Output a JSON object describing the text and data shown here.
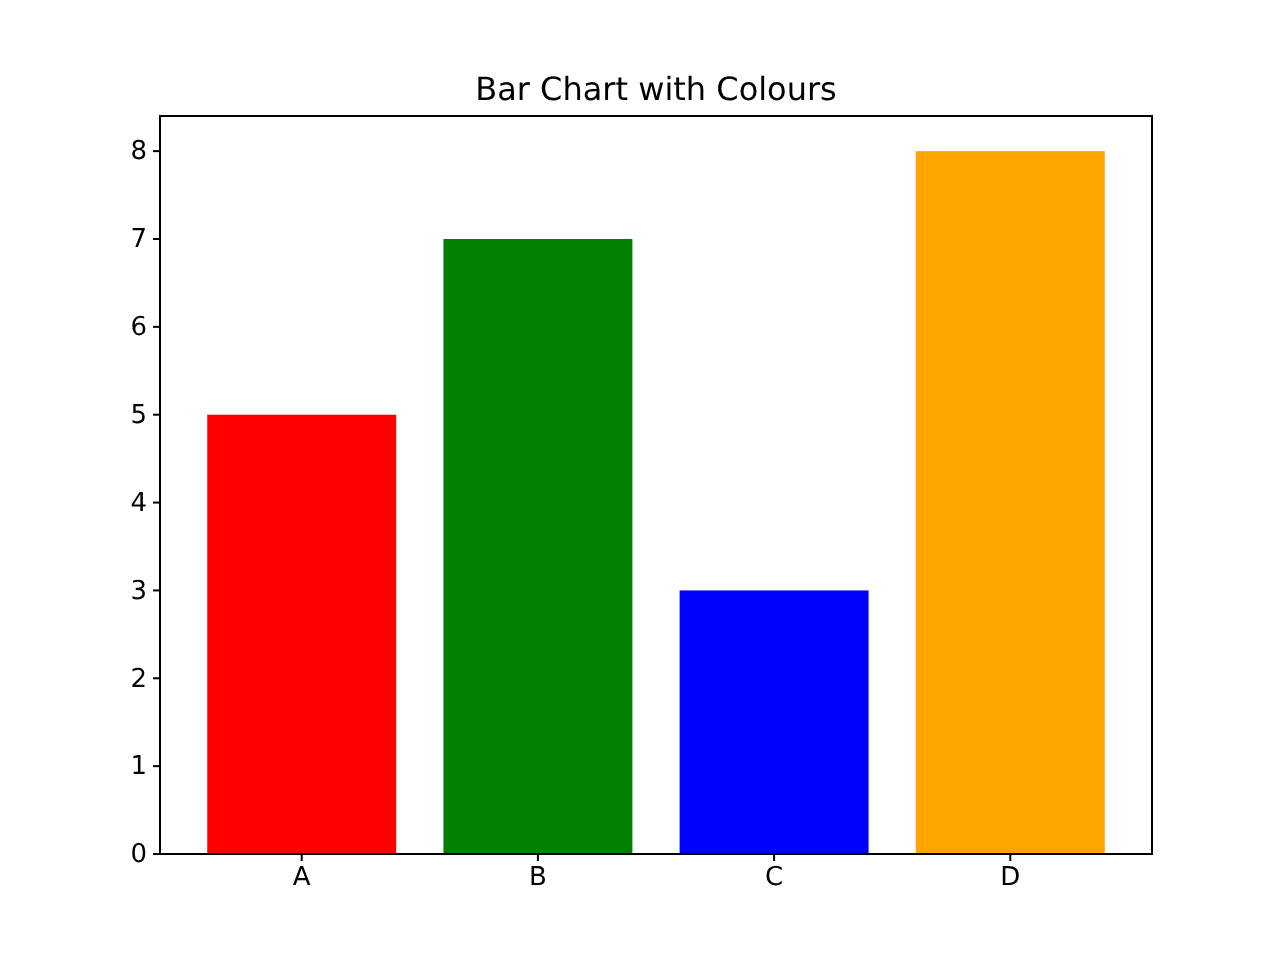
{
  "chart_data": {
    "type": "bar",
    "title": "Bar Chart with Colours",
    "categories": [
      "A",
      "B",
      "C",
      "D"
    ],
    "values": [
      5,
      7,
      3,
      8
    ],
    "colors": [
      "#ff0000",
      "#008000",
      "#0000ff",
      "#ffa500"
    ],
    "ylim": [
      0,
      8.4
    ],
    "yticks": [
      0,
      1,
      2,
      3,
      4,
      5,
      6,
      7,
      8
    ],
    "grid": false
  }
}
